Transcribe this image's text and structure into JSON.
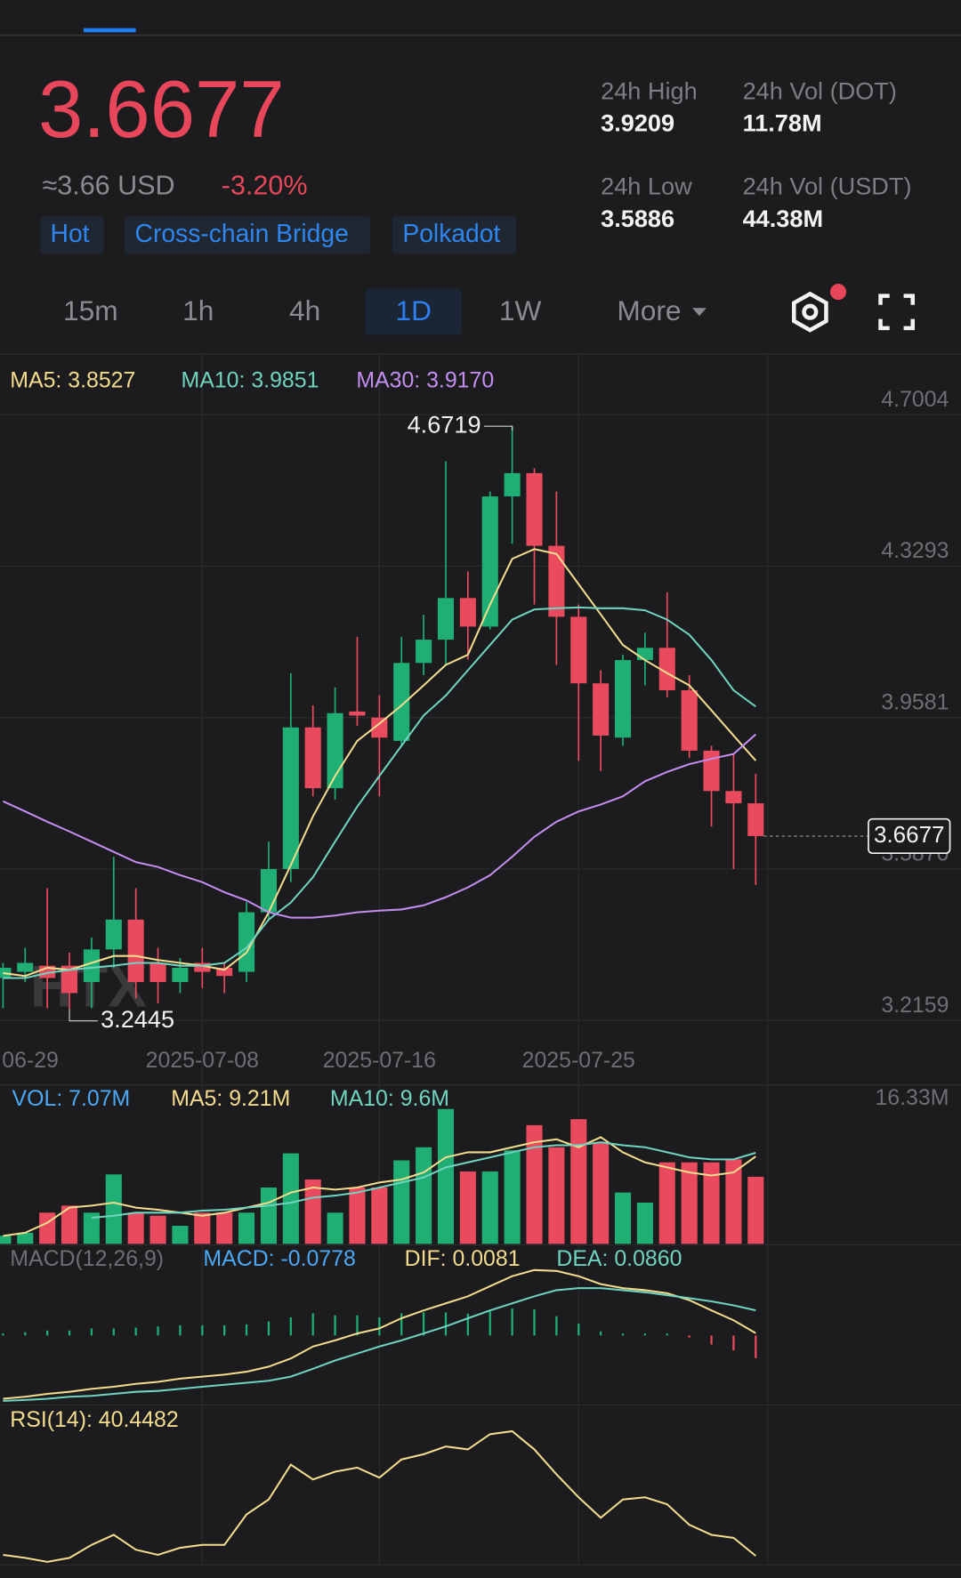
{
  "header": {
    "price": "3.6677",
    "approx": "≈3.66 USD",
    "change": "-3.20%",
    "tags": [
      "Hot",
      "Cross-chain Bridge",
      "Polkadot"
    ],
    "stats": [
      {
        "label": "24h High",
        "value": "3.9209"
      },
      {
        "label": "24h Vol (DOT)",
        "value": "11.78M"
      },
      {
        "label": "24h Low",
        "value": "3.5886"
      },
      {
        "label": "24h Vol (USDT)",
        "value": "44.38M"
      }
    ]
  },
  "tabs": [
    "15m",
    "1h",
    "4h",
    "1D",
    "1W",
    "More"
  ],
  "watermark": "HTX",
  "chart_data": [
    {
      "type": "candlestick",
      "categories": [
        "06-29",
        null,
        null,
        null,
        null,
        null,
        null,
        null,
        null,
        "2025-07-08",
        null,
        null,
        null,
        null,
        null,
        null,
        null,
        "2025-07-16",
        null,
        null,
        null,
        null,
        null,
        null,
        null,
        null,
        "2025-07-25",
        null,
        null,
        null,
        null,
        null,
        null,
        null,
        null
      ],
      "open": [
        3.32,
        3.335,
        3.35,
        3.35,
        3.31,
        3.39,
        3.463,
        3.357,
        3.31,
        3.357,
        3.345,
        3.335,
        3.481,
        3.587,
        3.934,
        3.785,
        3.973,
        3.958,
        3.901,
        4.092,
        4.149,
        4.251,
        4.181,
        4.5,
        4.557,
        4.379,
        4.205,
        4.042,
        3.909,
        4.099,
        4.129,
        4.025,
        3.877,
        3.778,
        3.748
      ],
      "high": [
        3.357,
        3.394,
        3.54,
        3.382,
        3.419,
        3.617,
        3.54,
        3.394,
        3.369,
        3.394,
        3.357,
        3.506,
        3.654,
        4.067,
        3.988,
        4.032,
        4.156,
        4.013,
        4.156,
        4.21,
        4.586,
        4.316,
        4.512,
        4.6719,
        4.569,
        4.512,
        4.235,
        4.074,
        4.112,
        4.166,
        4.265,
        4.062,
        3.889,
        3.869,
        3.82
      ],
      "low": [
        3.246,
        3.31,
        3.246,
        3.2445,
        3.246,
        3.345,
        3.27,
        3.258,
        3.283,
        3.295,
        3.283,
        3.31,
        3.463,
        3.555,
        3.765,
        3.757,
        3.938,
        3.765,
        3.889,
        4.062,
        4.087,
        4.1,
        4.174,
        4.384,
        4.235,
        4.087,
        3.852,
        3.827,
        3.889,
        4.037,
        4.008,
        3.859,
        3.691,
        3.587,
        3.548
      ],
      "close": [
        3.345,
        3.357,
        3.32,
        3.283,
        3.39,
        3.463,
        3.31,
        3.31,
        3.345,
        3.335,
        3.325,
        3.481,
        3.587,
        3.934,
        3.785,
        3.969,
        3.963,
        3.909,
        4.092,
        4.149,
        4.251,
        4.181,
        4.5,
        4.557,
        4.379,
        4.205,
        4.042,
        3.914,
        4.099,
        4.129,
        4.025,
        3.877,
        3.778,
        3.748,
        3.6677
      ],
      "up_color": "#1fae74",
      "down_color": "#ea4a5d",
      "series": [
        {
          "name": "MA5: 3.8527",
          "color": "#f3dc8e",
          "values": [
            3.332,
            3.325,
            3.345,
            3.34,
            3.357,
            3.374,
            3.374,
            3.364,
            3.357,
            3.35,
            3.34,
            3.382,
            3.481,
            3.597,
            3.716,
            3.815,
            3.901,
            3.943,
            3.988,
            4.037,
            4.087,
            4.112,
            4.235,
            4.347,
            4.371,
            4.359,
            4.285,
            4.211,
            4.136,
            4.099,
            4.067,
            4.037,
            3.976,
            3.914,
            3.8527
          ]
        },
        {
          "name": "MA10: 3.9851",
          "color": "#6fd3c0",
          "values": [
            3.32,
            3.32,
            3.332,
            3.34,
            3.345,
            3.35,
            3.357,
            3.357,
            3.35,
            3.35,
            3.357,
            3.394,
            3.463,
            3.505,
            3.567,
            3.654,
            3.74,
            3.815,
            3.889,
            3.963,
            4.012,
            4.074,
            4.136,
            4.198,
            4.223,
            4.226,
            4.228,
            4.226,
            4.226,
            4.221,
            4.198,
            4.161,
            4.099,
            4.025,
            3.9851
          ]
        },
        {
          "name": "MA30: 3.9170",
          "color": "#c48ef0",
          "values": [
            3.753,
            3.728,
            3.703,
            3.679,
            3.654,
            3.629,
            3.604,
            3.592,
            3.572,
            3.555,
            3.53,
            3.51,
            3.481,
            3.468,
            3.468,
            3.473,
            3.481,
            3.485,
            3.488,
            3.498,
            3.518,
            3.542,
            3.572,
            3.617,
            3.666,
            3.703,
            3.728,
            3.745,
            3.765,
            3.802,
            3.825,
            3.844,
            3.857,
            3.869,
            3.917
          ]
        }
      ],
      "max": 4.6719,
      "min": 3.2445,
      "last": 3.6677,
      "ylim": [
        3.2159,
        4.7004
      ],
      "yticks": [
        4.7004,
        4.3293,
        3.9581,
        {
          "value": 3.587,
          "label": "3.5870"
        },
        3.2159
      ],
      "grid": true
    },
    {
      "type": "volume",
      "series": [
        {
          "name": "VOL: 7.07M",
          "type": "bar",
          "color": "#4aa8f5",
          "values": [
            0.85,
            1.17,
            3.29,
            4.03,
            3.29,
            7.32,
            3.29,
            2.97,
            1.91,
            3.29,
            3.29,
            3.29,
            5.94,
            9.54,
            6.79,
            3.29,
            5.94,
            5.94,
            8.8,
            10.18,
            14.21,
            7.63,
            7.63,
            9.86,
            12.51,
            10.18,
            13.14,
            10.71,
            5.41,
            4.35,
            8.59,
            8.59,
            8.59,
            8.91,
            7.07
          ]
        },
        {
          "name": "MA5: 9.21M",
          "type": "line",
          "color": "#f3dc8e",
          "values": [
            0.85,
            1.17,
            2.23,
            3.82,
            4.03,
            4.35,
            3.82,
            3.6,
            3.29,
            2.97,
            3.29,
            3.82,
            4.35,
            5.41,
            5.94,
            5.72,
            5.94,
            6.47,
            6.79,
            7.53,
            9.12,
            9.65,
            9.65,
            10.18,
            10.71,
            11.02,
            10.18,
            11.24,
            9.65,
            8.59,
            8.06,
            7.53,
            7.21,
            7.53,
            9.21
          ]
        },
        {
          "name": "MA10: 9.6M",
          "type": "line",
          "color": "#6fd3c0",
          "values": [
            null,
            null,
            null,
            null,
            2.76,
            2.97,
            3.29,
            3.29,
            3.29,
            3.5,
            3.6,
            3.82,
            4.03,
            4.35,
            4.88,
            5.09,
            5.41,
            5.94,
            6.47,
            7.0,
            8.06,
            8.59,
            9.12,
            9.65,
            10.18,
            10.39,
            10.39,
            10.71,
            10.39,
            10.18,
            9.65,
            9.12,
            8.91,
            8.91,
            9.6
          ]
        }
      ],
      "ylim": [
        0,
        16.33
      ],
      "yticks": [
        {
          "value": 16.33,
          "label": "16.33M"
        }
      ]
    },
    {
      "type": "macd",
      "title": "MACD(12,26,9)",
      "up_color": "#1fae74",
      "down_color": "#ea4a5d",
      "series": [
        {
          "name": "MACD: -0.0778",
          "type": "bar",
          "color": "#4aa8f5",
          "values": [
            0.007,
            0.011,
            0.017,
            0.017,
            0.024,
            0.024,
            0.027,
            0.031,
            0.035,
            0.035,
            0.035,
            0.038,
            0.048,
            0.062,
            0.076,
            0.069,
            0.069,
            0.062,
            0.076,
            0.079,
            0.079,
            0.075,
            0.083,
            0.093,
            0.09,
            0.066,
            0.041,
            0.014,
            0.007,
            0.007,
            0.007,
            -0.007,
            -0.031,
            -0.051,
            -0.0778
          ]
        },
        {
          "name": "DIF: 0.0081",
          "type": "line",
          "color": "#f3dc8e",
          "values": [
            -0.217,
            -0.21,
            -0.2,
            -0.193,
            -0.183,
            -0.176,
            -0.166,
            -0.159,
            -0.148,
            -0.141,
            -0.134,
            -0.124,
            -0.107,
            -0.079,
            -0.038,
            -0.017,
            0.007,
            0.024,
            0.059,
            0.086,
            0.11,
            0.134,
            0.169,
            0.203,
            0.224,
            0.221,
            0.203,
            0.176,
            0.162,
            0.155,
            0.145,
            0.121,
            0.086,
            0.052,
            0.0081
          ]
        },
        {
          "name": "DEA: 0.0860",
          "type": "line",
          "color": "#6fd3c0",
          "values": [
            -0.224,
            -0.221,
            -0.217,
            -0.21,
            -0.207,
            -0.2,
            -0.193,
            -0.19,
            -0.183,
            -0.176,
            -0.169,
            -0.162,
            -0.155,
            -0.141,
            -0.114,
            -0.086,
            -0.062,
            -0.038,
            -0.017,
            0.007,
            0.031,
            0.059,
            0.086,
            0.11,
            0.134,
            0.155,
            0.162,
            0.162,
            0.155,
            0.148,
            0.138,
            0.128,
            0.117,
            0.103,
            0.086
          ]
        }
      ],
      "ylim": [
        -0.25,
        0.3
      ]
    },
    {
      "type": "line",
      "series": [
        {
          "name": "RSI(14): 40.4482",
          "color": "#f3dc8e",
          "values": [
            40.7,
            39.9,
            38.8,
            39.9,
            43.4,
            46.1,
            42.1,
            40.7,
            42.6,
            43.4,
            43.4,
            51.6,
            55.6,
            65.0,
            61.0,
            63.1,
            64.2,
            61.5,
            66.4,
            67.8,
            69.9,
            69.1,
            73.2,
            74.0,
            69.1,
            62.4,
            56.2,
            50.7,
            55.6,
            56.2,
            54.3,
            48.8,
            46.1,
            45.3,
            40.4482
          ]
        }
      ],
      "ylim": [
        38,
        80
      ]
    }
  ]
}
